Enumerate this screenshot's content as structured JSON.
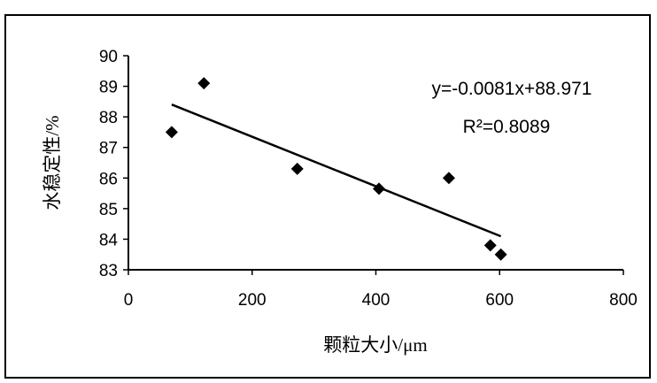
{
  "chart_data": {
    "type": "scatter",
    "title": "",
    "xlabel": "颗粒大小/μm",
    "ylabel": "水稳定性/%",
    "xlim": [
      0,
      800
    ],
    "ylim": [
      83,
      90
    ],
    "x_ticks": [
      "0",
      "200",
      "400",
      "600",
      "800"
    ],
    "y_ticks": [
      "83",
      "84",
      "85",
      "86",
      "87",
      "88",
      "89",
      "90"
    ],
    "x_tick_values": [
      0,
      200,
      400,
      600,
      800
    ],
    "y_tick_values": [
      83,
      84,
      85,
      86,
      87,
      88,
      89,
      90
    ],
    "grid": false,
    "legend": "none",
    "points": [
      {
        "x": 70,
        "y": 87.5
      },
      {
        "x": 122,
        "y": 89.1
      },
      {
        "x": 273,
        "y": 86.3
      },
      {
        "x": 405,
        "y": 85.65
      },
      {
        "x": 518,
        "y": 86.0
      },
      {
        "x": 585,
        "y": 83.8
      },
      {
        "x": 602,
        "y": 83.5
      }
    ],
    "trendline": {
      "slope": -0.0081,
      "intercept": 88.971,
      "x_range": [
        70,
        602
      ]
    },
    "annotations": {
      "equation": "y=-0.0081x+88.971",
      "r2": "R²=0.8089"
    },
    "colors": {
      "marker": "#000000",
      "line": "#000000",
      "axis": "#000000"
    }
  }
}
